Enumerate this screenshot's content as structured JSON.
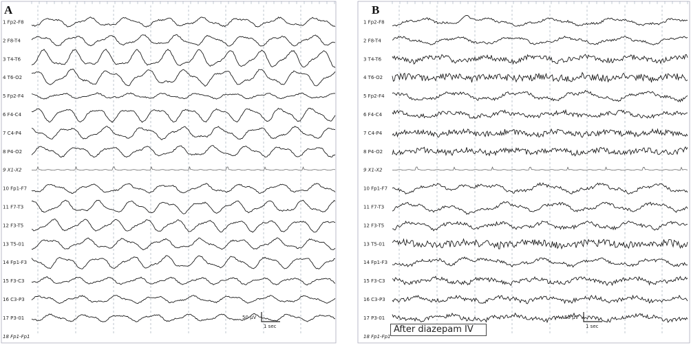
{
  "chart_data": [
    {
      "type": "line",
      "panel": "A",
      "channels": [
        "1 Fp2-F8",
        "2 F8-T4",
        "3 T4-T6",
        "4 T6-O2",
        "5 Fp2-F4",
        "6 F4-C4",
        "7 C4-P4",
        "8 P4-O2",
        "9 X1-X2",
        "10 Fp1-F7",
        "11 F7-T3",
        "12 F3-T5",
        "13 T5-01",
        "14 Fp1-F3",
        "15 F3-C3",
        "16 C3-P3",
        "17 P3-01",
        "18 Fp1-Fp1"
      ],
      "scale_amplitude": "50 µV",
      "scale_time": "1 sec"
    },
    {
      "type": "line",
      "panel": "B",
      "channels": [
        "1 Fp2-F8",
        "2 F8-T4",
        "3 T4-T6",
        "4 T6-O2",
        "5 Fp2-F4",
        "6 F4-C4",
        "7 C4-P4",
        "8 P4-O2",
        "9 X1-X2",
        "10 Fp1-F7",
        "11 F7-T3",
        "12 F3-T5",
        "13 T5-01",
        "14 Fp1-F3",
        "15 F3-C3",
        "16 C3-P3",
        "17 P3-01",
        "18 Fp1-Fp1"
      ],
      "scale_amplitude": "50 µV",
      "scale_time": "1 sec",
      "annotation": "After diazepam IV"
    }
  ]
}
